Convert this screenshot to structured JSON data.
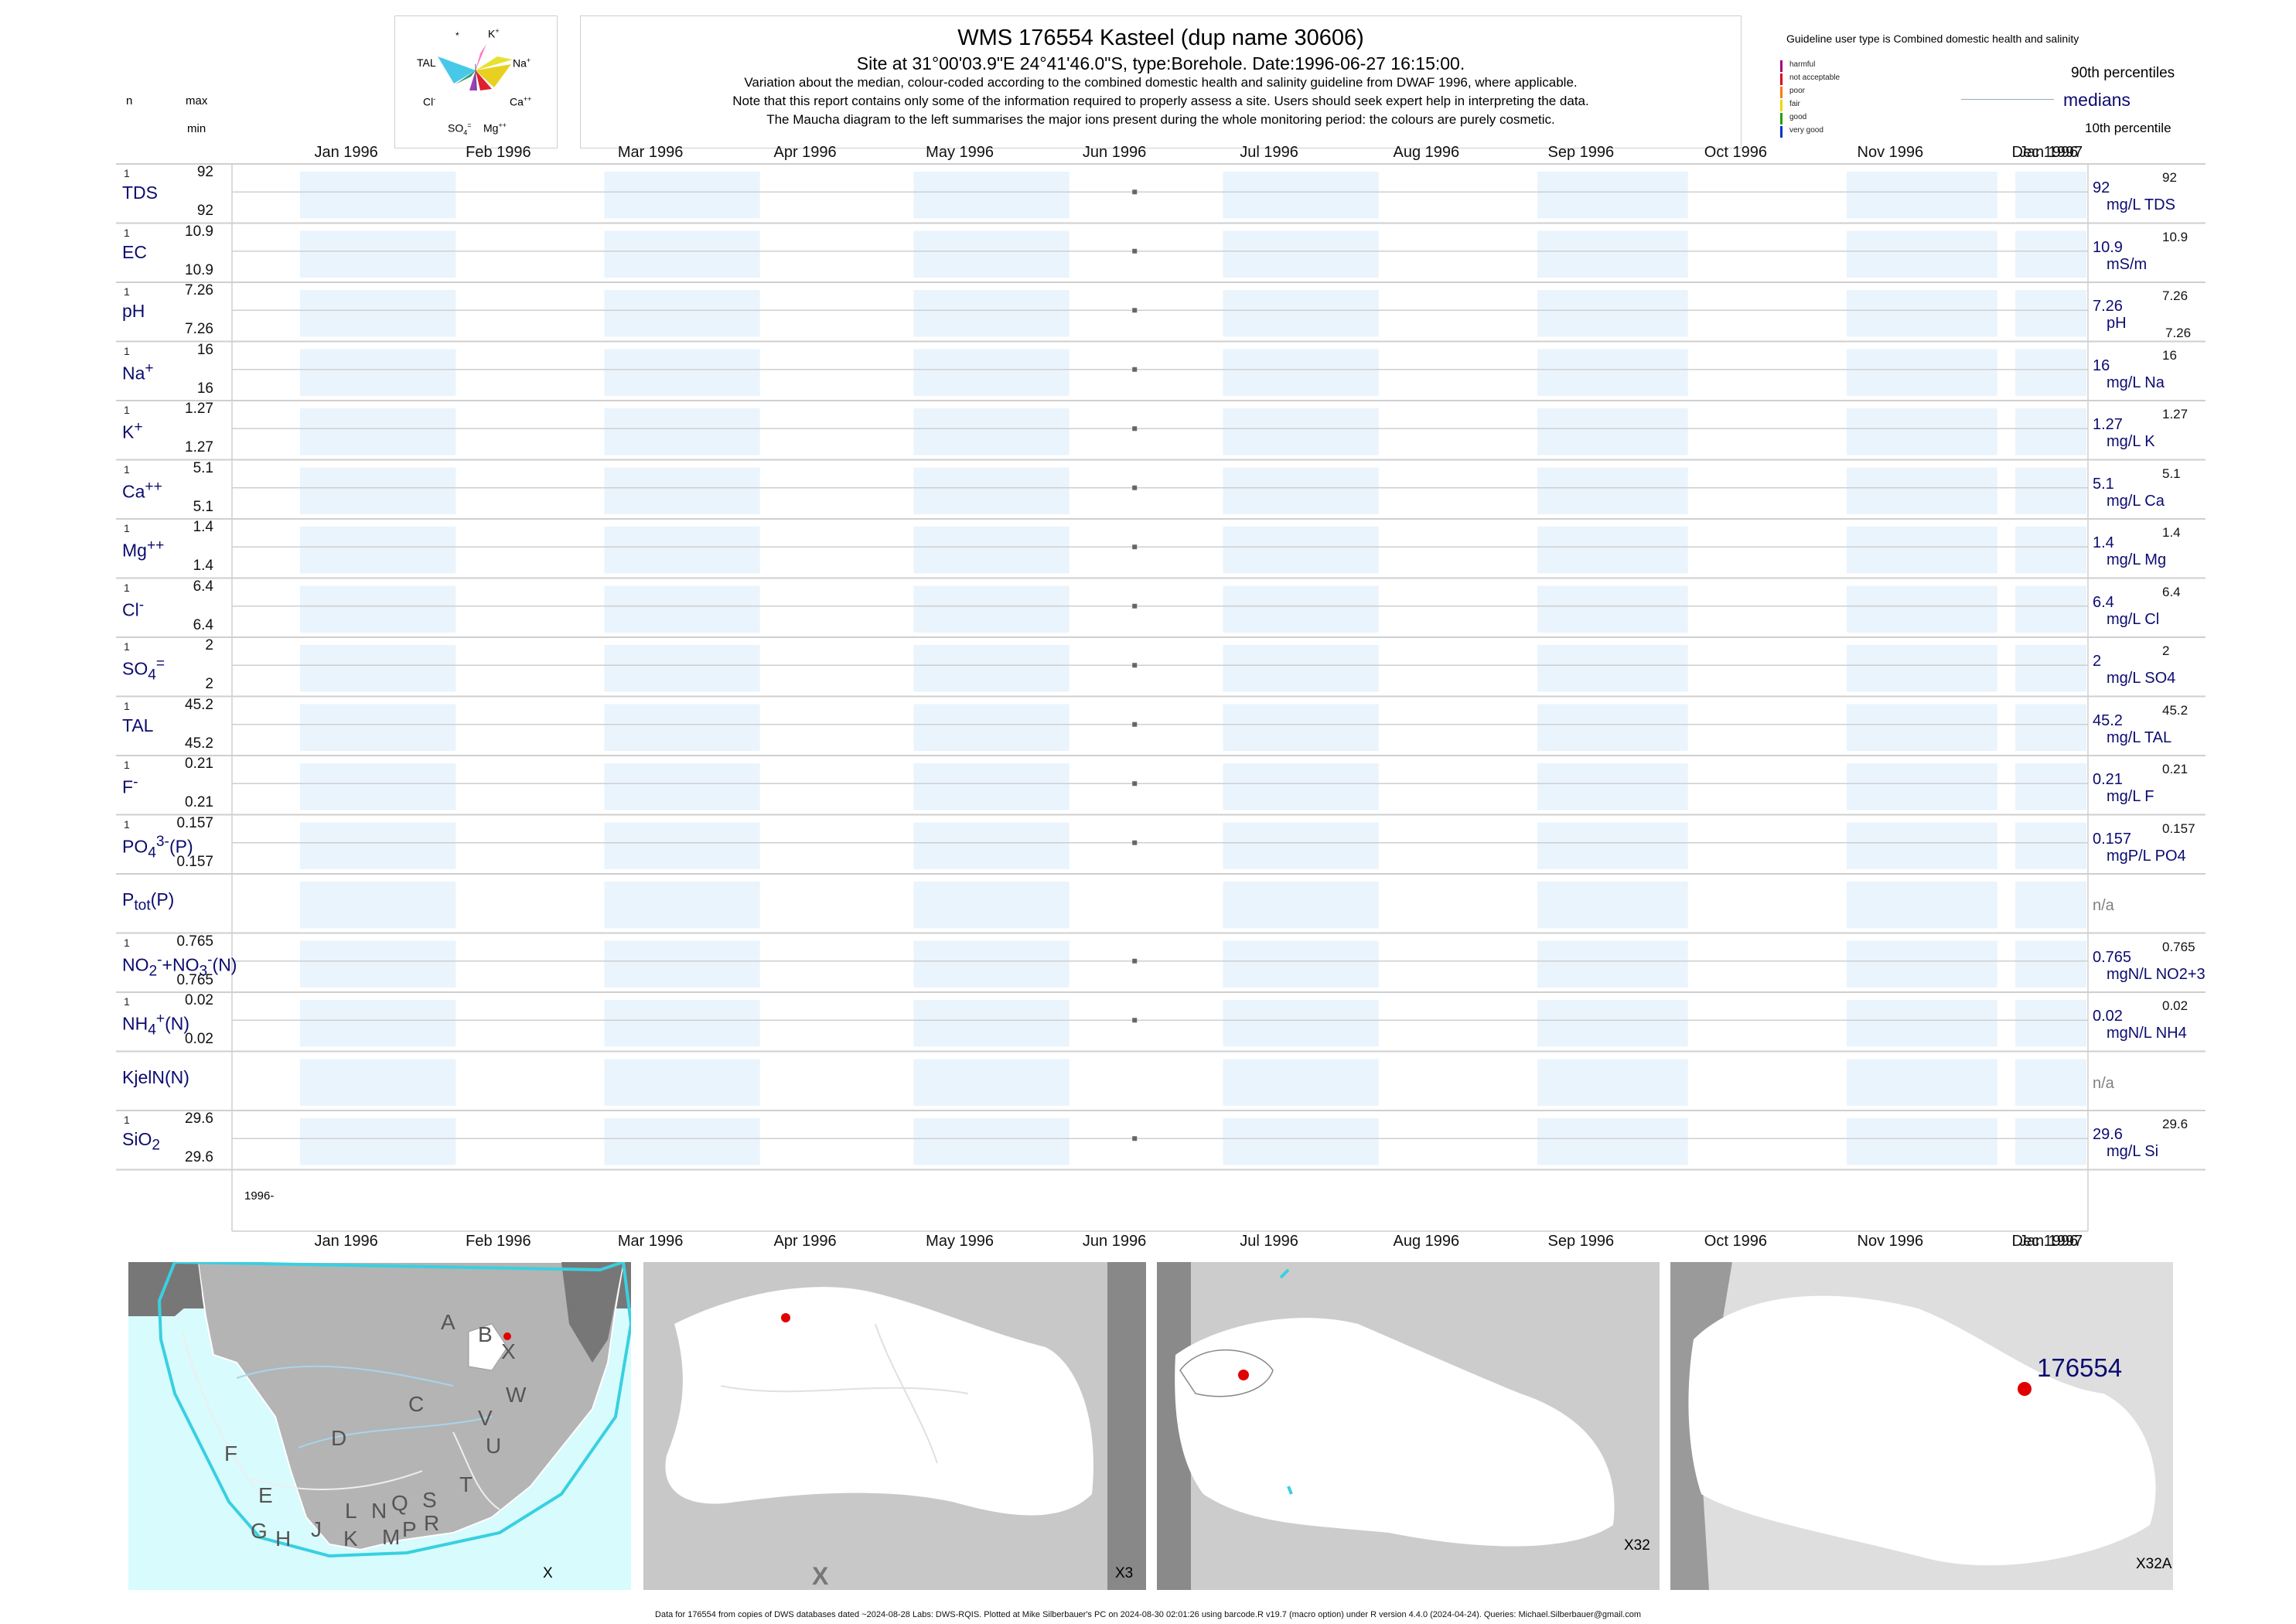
{
  "header": {
    "title": "WMS 176554  Kasteel (dup name 30606)",
    "subtitle": "Site at 31°00'03.9\"E 24°41'46.0\"S, type:Borehole. Date:1996-06-27 16:15:00.",
    "note1": "Variation about the median,  colour-coded according to the combined domestic health and salinity guideline from DWAF 1996, where applicable.",
    "note2": "Note that this report contains only some of the information required to properly assess a site. Users should seek expert help in interpreting the data.",
    "note3": "The Maucha diagram to the left summarises the major ions present during the whole monitoring period: the colours are purely cosmetic."
  },
  "left_header": {
    "n": "n",
    "max": "max",
    "min": "min"
  },
  "maucha": {
    "labels": [
      "*",
      "K+",
      "Na+",
      "TAL",
      "Cl-",
      "Ca++",
      "SO4=",
      "Mg++"
    ]
  },
  "legend": {
    "guideline_title": "Guideline user type is Combined domestic health and salinity",
    "classes": [
      {
        "label": "harmful",
        "color": "#a0007a"
      },
      {
        "label": "not acceptable",
        "color": "#e0001a"
      },
      {
        "label": "poor",
        "color": "#ff7a00"
      },
      {
        "label": "fair",
        "color": "#e8d800"
      },
      {
        "label": "good",
        "color": "#21a000"
      },
      {
        "label": "very good",
        "color": "#0033cc"
      }
    ],
    "p90": "90th percentiles",
    "medians": "medians",
    "p10": "10th percentile"
  },
  "axis": {
    "top_labels": [
      "Jan 1996",
      "Feb 1996",
      "Mar 1996",
      "Apr 1996",
      "May 1996",
      "Jun 1996",
      "Jul 1996",
      "Aug 1996",
      "Sep 1996",
      "Oct 1996",
      "Nov 1996",
      "Dec 1996",
      "Jan 1997"
    ],
    "bottom_labels": [
      "Jan 1996",
      "Feb 1996",
      "Mar 1996",
      "Apr 1996",
      "May 1996",
      "Jun 1996",
      "Jul 1996",
      "Aug 1996",
      "Sep 1996",
      "Oct 1996",
      "Nov 1996",
      "Dec 1996",
      "Jan 1997"
    ],
    "year_label": "1996-"
  },
  "chart_data": {
    "type": "scatter",
    "x_range": [
      "1996-01-01",
      "1997-01-01"
    ],
    "sample_date": "1996-06-27",
    "series": [
      {
        "name": "TDS",
        "n": "1",
        "max": "92",
        "min": "92",
        "median": "92",
        "unit": "mg/L TDS",
        "value": 92,
        "p90": "92"
      },
      {
        "name": "EC",
        "n": "1",
        "max": "10.9",
        "min": "10.9",
        "median": "10.9",
        "unit": "mS/m",
        "value": 10.9,
        "p90": "10.9"
      },
      {
        "name": "pH",
        "n": "1",
        "max": "7.26",
        "min": "7.26",
        "median": "7.26",
        "unit": "pH",
        "value": 7.26,
        "p90": "7.26",
        "p10": "7.26"
      },
      {
        "name": "Na+",
        "n": "1",
        "max": "16",
        "min": "16",
        "median": "16",
        "unit": "mg/L Na",
        "value": 16,
        "p90": "16"
      },
      {
        "name": "K+",
        "n": "1",
        "max": "1.27",
        "min": "1.27",
        "median": "1.27",
        "unit": "mg/L K",
        "value": 1.27,
        "p90": "1.27"
      },
      {
        "name": "Ca++",
        "n": "1",
        "max": "5.1",
        "min": "5.1",
        "median": "5.1",
        "unit": "mg/L Ca",
        "value": 5.1,
        "p90": "5.1"
      },
      {
        "name": "Mg++",
        "n": "1",
        "max": "1.4",
        "min": "1.4",
        "median": "1.4",
        "unit": "mg/L Mg",
        "value": 1.4,
        "p90": "1.4"
      },
      {
        "name": "Cl-",
        "n": "1",
        "max": "6.4",
        "min": "6.4",
        "median": "6.4",
        "unit": "mg/L Cl",
        "value": 6.4,
        "p90": "6.4"
      },
      {
        "name": "SO4=",
        "n": "1",
        "max": "2",
        "min": "2",
        "median": "2",
        "unit": "mg/L SO4",
        "value": 2,
        "p90": "2"
      },
      {
        "name": "TAL",
        "n": "1",
        "max": "45.2",
        "min": "45.2",
        "median": "45.2",
        "unit": "mg/L TAL",
        "value": 45.2,
        "p90": "45.2"
      },
      {
        "name": "F-",
        "n": "1",
        "max": "0.21",
        "min": "0.21",
        "median": "0.21",
        "unit": "mg/L F",
        "value": 0.21,
        "p90": "0.21"
      },
      {
        "name": "PO4(3-)(P)",
        "n": "1",
        "max": "0.157",
        "min": "0.157",
        "median": "0.157",
        "unit": "mgP/L PO4",
        "value": 0.157,
        "p90": "0.157"
      },
      {
        "name": "Ptot(P)",
        "n": "",
        "max": "",
        "min": "",
        "median": "n/a",
        "unit": "",
        "value": null
      },
      {
        "name": "NO2+NO3(N)",
        "n": "1",
        "max": "0.765",
        "min": "0.765",
        "median": "0.765",
        "unit": "mgN/L NO2+3",
        "value": 0.765,
        "p90": "0.765"
      },
      {
        "name": "NH4+(N)",
        "n": "1",
        "max": "0.02",
        "min": "0.02",
        "median": "0.02",
        "unit": "mgN/L NH4",
        "value": 0.02,
        "p90": "0.02"
      },
      {
        "name": "KjelN(N)",
        "n": "",
        "max": "",
        "min": "",
        "median": "n/a",
        "unit": "",
        "value": null
      },
      {
        "name": "SiO2",
        "n": "1",
        "max": "29.6",
        "min": "29.6",
        "median": "29.6",
        "unit": "mg/L Si",
        "value": 29.6,
        "p90": "29.6"
      }
    ]
  },
  "maps": {
    "panel1_tag": "X",
    "panel2_tag": "X3",
    "panel3_tag": "X32",
    "panel4_tag": "X32A",
    "site_label": "176554",
    "panel2_x": "X",
    "region_letters": [
      "A",
      "B",
      "X",
      "C",
      "W",
      "D",
      "V",
      "U",
      "F",
      "T",
      "E",
      "L",
      "N",
      "Q",
      "S",
      "G",
      "H",
      "J",
      "K",
      "M",
      "P",
      "R"
    ]
  },
  "footer": "Data for 176554 from copies of DWS databases dated ~2024-08-28 Labs: DWS-RQIS. Plotted at Mike Silberbauer's PC on 2024-08-30 02:01:26 using barcode.R v19.7 (macro option) under R version 4.4.0 (2024-04-24). Queries: Michael.Silberbauer@gmail.com"
}
